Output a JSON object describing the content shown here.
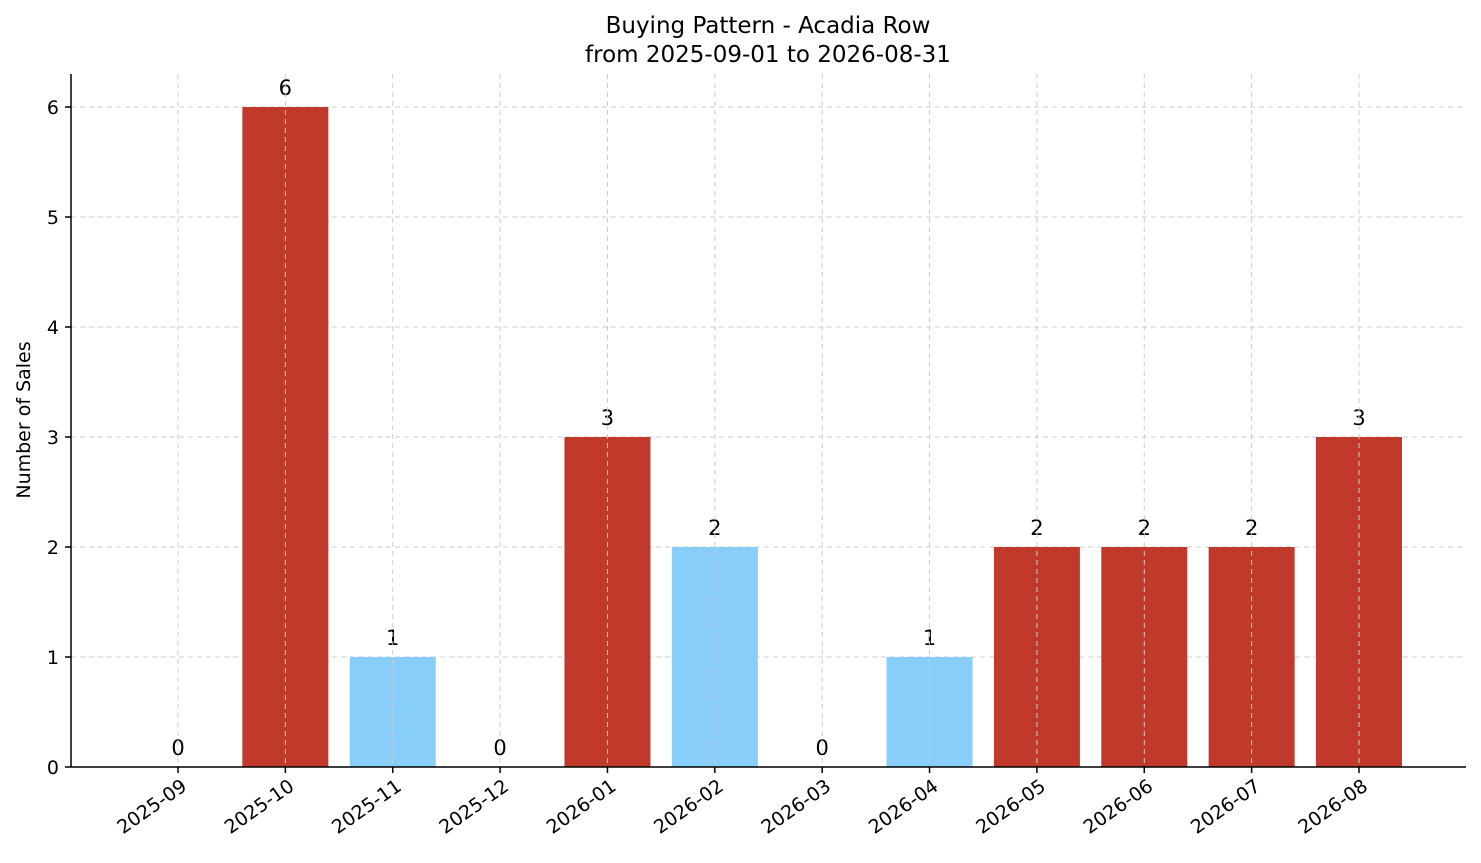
{
  "chart_data": {
    "type": "bar",
    "title": "Buying Pattern - Acadia Row",
    "subtitle": "from 2025-09-01 to 2026-08-31",
    "xlabel": "",
    "ylabel": "Number of Sales",
    "categories": [
      "2025-09",
      "2025-10",
      "2025-11",
      "2025-12",
      "2026-01",
      "2026-02",
      "2026-03",
      "2026-04",
      "2026-05",
      "2026-06",
      "2026-07",
      "2026-08"
    ],
    "values": [
      0,
      6,
      1,
      0,
      3,
      2,
      0,
      1,
      2,
      2,
      2,
      3
    ],
    "bar_colors": [
      "#c0392b",
      "#c0392b",
      "#87cefa",
      "#c0392b",
      "#c0392b",
      "#87cefa",
      "#c0392b",
      "#87cefa",
      "#c0392b",
      "#c0392b",
      "#c0392b",
      "#c0392b"
    ],
    "data_labels": [
      "0",
      "6",
      "1",
      "0",
      "3",
      "2",
      "0",
      "1",
      "2",
      "2",
      "2",
      "3"
    ],
    "ylim": [
      0,
      6.3
    ],
    "yticks": [
      0,
      1,
      2,
      3,
      4,
      5,
      6
    ],
    "grid": true,
    "legend": "none"
  }
}
